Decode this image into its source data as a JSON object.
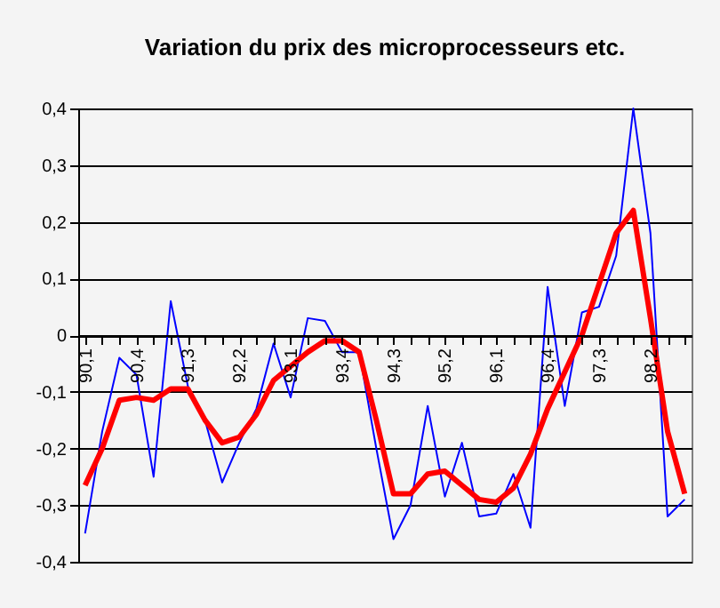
{
  "chart_data": {
    "type": "line",
    "title": "Variation du prix des microprocesseurs etc.",
    "categories": [
      "90,1",
      null,
      null,
      "90,4",
      null,
      null,
      "91,3",
      null,
      null,
      "92,2",
      null,
      null,
      "93,1",
      null,
      null,
      "93,4",
      null,
      null,
      "94,3",
      null,
      null,
      "95,2",
      null,
      null,
      "96,1",
      null,
      null,
      "96,4",
      null,
      null,
      "97,3",
      null,
      null,
      "98,2",
      null,
      null
    ],
    "series": [
      {
        "color": "#0000ff",
        "values": [
          -0.35,
          -0.17,
          -0.04,
          -0.07,
          -0.25,
          0.06,
          -0.09,
          -0.15,
          -0.26,
          -0.19,
          -0.13,
          -0.015,
          -0.11,
          0.03,
          0.025,
          -0.03,
          -0.03,
          -0.2,
          -0.36,
          -0.3,
          -0.125,
          -0.285,
          -0.19,
          -0.32,
          -0.315,
          -0.245,
          -0.34,
          0.085,
          -0.125,
          0.04,
          0.05,
          0.14,
          0.4,
          0.18,
          -0.32,
          -0.29
        ]
      },
      {
        "color": "#ff0000",
        "values": [
          -0.265,
          -0.2,
          -0.115,
          -0.11,
          -0.115,
          -0.095,
          -0.095,
          -0.15,
          -0.19,
          -0.18,
          -0.14,
          -0.08,
          -0.055,
          -0.03,
          -0.01,
          -0.01,
          -0.03,
          -0.15,
          -0.28,
          -0.28,
          -0.245,
          -0.24,
          -0.265,
          -0.29,
          -0.295,
          -0.27,
          -0.21,
          -0.13,
          -0.065,
          0.0,
          0.09,
          0.18,
          0.22,
          0.03,
          -0.17,
          -0.28
        ]
      }
    ],
    "ylim": [
      -0.4,
      0.4
    ],
    "yticks": [
      {
        "value": -0.4,
        "label": "-0,4"
      },
      {
        "value": -0.3,
        "label": "-0,3"
      },
      {
        "value": -0.2,
        "label": "-0,2"
      },
      {
        "value": -0.1,
        "label": "-0,1"
      },
      {
        "value": 0,
        "label": "0"
      },
      {
        "value": 0.1,
        "label": "0,1"
      },
      {
        "value": 0.2,
        "label": "0,2"
      },
      {
        "value": 0.3,
        "label": "0,3"
      },
      {
        "value": 0.4,
        "label": "0,4"
      }
    ],
    "grid": "y",
    "marker": "none",
    "line_style": "solid"
  }
}
